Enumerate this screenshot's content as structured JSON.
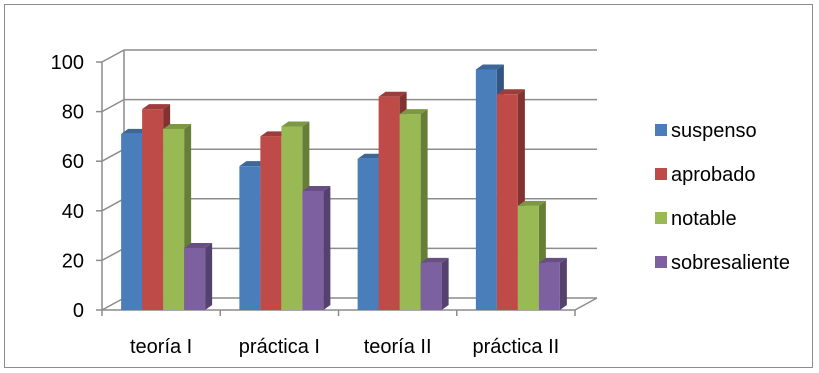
{
  "chart_data": {
    "type": "bar",
    "title": "",
    "xlabel": "",
    "ylabel": "",
    "categories": [
      "teoría I",
      "práctica I",
      "teoría II",
      "práctica II"
    ],
    "series": [
      {
        "name": "suspenso",
        "values": [
          71,
          58,
          61,
          97
        ],
        "color": "#4a7ebb"
      },
      {
        "name": "aprobado",
        "values": [
          81,
          70,
          86,
          87
        ],
        "color": "#be4b48"
      },
      {
        "name": "notable",
        "values": [
          73,
          74,
          79,
          42
        ],
        "color": "#98b954"
      },
      {
        "name": "sobresaliente",
        "values": [
          25,
          48,
          19,
          19
        ],
        "color": "#7d60a0"
      }
    ],
    "ylim": [
      0,
      100
    ],
    "yticks": [
      0,
      20,
      40,
      60,
      80,
      100
    ],
    "grid": true,
    "legend_position": "right",
    "style": "3d-clustered-column"
  }
}
